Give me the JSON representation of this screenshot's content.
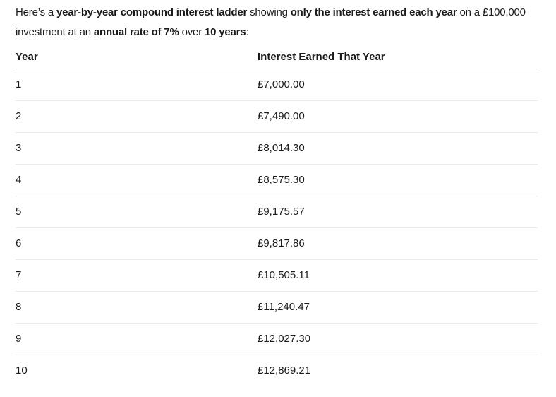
{
  "intro": {
    "segments": [
      {
        "text": "Here’s a ",
        "bold": false
      },
      {
        "text": "year-by-year compound interest ladder",
        "bold": true
      },
      {
        "text": " showing ",
        "bold": false
      },
      {
        "text": "only the interest earned each year",
        "bold": true
      },
      {
        "text": " on a £100,000",
        "bold": false
      },
      {
        "break": true
      },
      {
        "text": "investment at an ",
        "bold": false
      },
      {
        "text": "annual rate of 7%",
        "bold": true
      },
      {
        "text": " over ",
        "bold": false
      },
      {
        "text": "10 years",
        "bold": true
      },
      {
        "text": ":",
        "bold": false
      }
    ]
  },
  "table": {
    "columns": [
      "Year",
      "Interest Earned That Year"
    ],
    "rows": [
      [
        "1",
        "£7,000.00"
      ],
      [
        "2",
        "£7,490.00"
      ],
      [
        "3",
        "£8,014.30"
      ],
      [
        "4",
        "£8,575.30"
      ],
      [
        "5",
        "£9,175.57"
      ],
      [
        "6",
        "£9,817.86"
      ],
      [
        "7",
        "£10,505.11"
      ],
      [
        "8",
        "£11,240.47"
      ],
      [
        "9",
        "£12,027.30"
      ],
      [
        "10",
        "£12,869.21"
      ]
    ]
  },
  "colors": {
    "background": "#ffffff",
    "text": "#1a1a1a",
    "header_divider": "#cbcbcb",
    "row_divider": "#e9e9e9"
  }
}
